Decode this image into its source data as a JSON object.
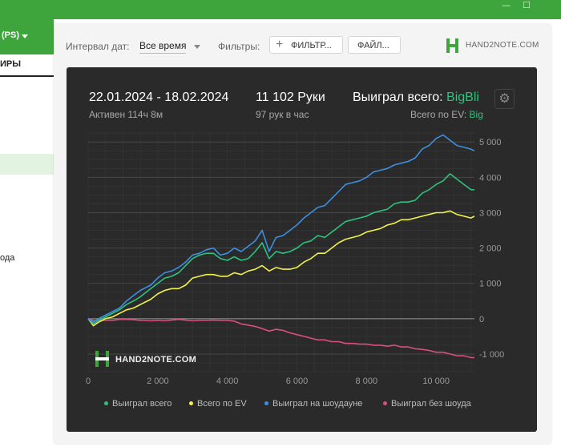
{
  "window": {
    "controls": [
      "—",
      "☐"
    ]
  },
  "sidebar": {
    "room_label": "(PS)",
    "tab_label": "ИРЫ",
    "item_text": "ода"
  },
  "toolbar": {
    "interval_label": "Интервал дат:",
    "interval_value": "Все время",
    "filters_label": "Фильтры:",
    "filter_button": "ФИЛЬТР...",
    "file_button": "ФАЙЛ...",
    "brand": "HAND2NOTE.COM"
  },
  "stats": {
    "date_range": "22.01.2024 - 18.02.2024",
    "active": "Активен 114ч 8м",
    "hands": "11 102 Руки",
    "hands_rate": "97 рук в час",
    "won_label": "Выиграл всего:",
    "won_value": "BigBli",
    "ev_label": "Всего по EV:",
    "ev_value": "Big"
  },
  "watermark": "HAND2NOTE.COM",
  "colors": {
    "won": "#2ec27e",
    "ev": "#f2f24a",
    "showdown": "#3d8fe0",
    "non_showdown": "#d9507a",
    "brand_green": "#3ea53c"
  },
  "chart_data": {
    "type": "line",
    "xlim": [
      0,
      11102
    ],
    "ylim": [
      -1500,
      5300
    ],
    "x_ticks": [
      "0",
      "2 000",
      "4 000",
      "6 000",
      "8 000",
      "10 000"
    ],
    "x_tick_values": [
      0,
      2000,
      4000,
      6000,
      8000,
      10000
    ],
    "y_ticks": [
      "5 000",
      "4 000",
      "3 000",
      "2 000",
      "1 000",
      "0",
      "-1 000"
    ],
    "y_tick_values": [
      5000,
      4000,
      3000,
      2000,
      1000,
      0,
      -1000
    ],
    "grid": true,
    "legend_position": "bottom",
    "x": [
      0,
      150,
      300,
      500,
      700,
      900,
      1100,
      1300,
      1500,
      1800,
      2000,
      2200,
      2400,
      2600,
      2800,
      3000,
      3200,
      3400,
      3600,
      3800,
      4000,
      4200,
      4400,
      4600,
      4800,
      5000,
      5200,
      5400,
      5600,
      5800,
      6000,
      6200,
      6400,
      6600,
      6800,
      7000,
      7200,
      7400,
      7600,
      7800,
      8000,
      8200,
      8400,
      8600,
      8800,
      9000,
      9200,
      9400,
      9600,
      9800,
      10000,
      10200,
      10400,
      10600,
      10800,
      11000,
      11102
    ],
    "series": [
      {
        "name": "Выиграл всего",
        "color": "#2ec27e",
        "values": [
          0,
          -150,
          -50,
          50,
          150,
          250,
          400,
          500,
          620,
          850,
          1000,
          1150,
          1200,
          1300,
          1500,
          1700,
          1800,
          1850,
          1850,
          1700,
          1650,
          1750,
          1650,
          1700,
          1900,
          2150,
          1700,
          1900,
          1850,
          1900,
          2000,
          2150,
          2200,
          2350,
          2300,
          2450,
          2600,
          2750,
          2800,
          2850,
          2900,
          3000,
          3050,
          3100,
          3250,
          3300,
          3300,
          3350,
          3550,
          3650,
          3800,
          3900,
          4100,
          3950,
          3800,
          3650,
          3650
        ]
      },
      {
        "name": "Всего по EV",
        "color": "#f2f24a",
        "values": [
          0,
          -200,
          -100,
          0,
          50,
          150,
          250,
          300,
          400,
          550,
          700,
          800,
          850,
          850,
          950,
          1150,
          1200,
          1250,
          1250,
          1200,
          1200,
          1300,
          1250,
          1350,
          1400,
          1500,
          1350,
          1450,
          1400,
          1400,
          1450,
          1600,
          1700,
          1850,
          1850,
          2000,
          2150,
          2250,
          2300,
          2350,
          2450,
          2500,
          2550,
          2650,
          2700,
          2800,
          2800,
          2850,
          2900,
          2950,
          3000,
          3000,
          3050,
          2950,
          2900,
          2850,
          2900
        ]
      },
      {
        "name": "Выиграл на шоудауне",
        "color": "#3d8fe0",
        "values": [
          0,
          -100,
          0,
          100,
          200,
          300,
          500,
          650,
          800,
          950,
          1150,
          1300,
          1350,
          1450,
          1600,
          1800,
          1850,
          1950,
          2000,
          1800,
          1850,
          2000,
          1900,
          2050,
          2200,
          2500,
          1900,
          2300,
          2350,
          2500,
          2650,
          2850,
          3000,
          3150,
          3200,
          3400,
          3600,
          3800,
          3850,
          3900,
          4000,
          4150,
          4200,
          4250,
          4350,
          4400,
          4450,
          4550,
          4800,
          4900,
          5100,
          5200,
          5050,
          4900,
          4850,
          4800,
          4750
        ]
      },
      {
        "name": "Выиграл без шоуда",
        "color": "#d9507a",
        "values": [
          0,
          -50,
          -50,
          -50,
          -50,
          -20,
          -20,
          -30,
          -50,
          -60,
          -50,
          -60,
          -40,
          -20,
          -40,
          -60,
          -50,
          -50,
          -40,
          -50,
          -50,
          -70,
          -150,
          -180,
          -220,
          -280,
          -350,
          -300,
          -330,
          -400,
          -450,
          -500,
          -550,
          -600,
          -600,
          -650,
          -650,
          -700,
          -700,
          -720,
          -720,
          -750,
          -750,
          -780,
          -750,
          -800,
          -800,
          -850,
          -870,
          -900,
          -950,
          -950,
          -1000,
          -1050,
          -1050,
          -1100,
          -1100
        ]
      }
    ]
  }
}
